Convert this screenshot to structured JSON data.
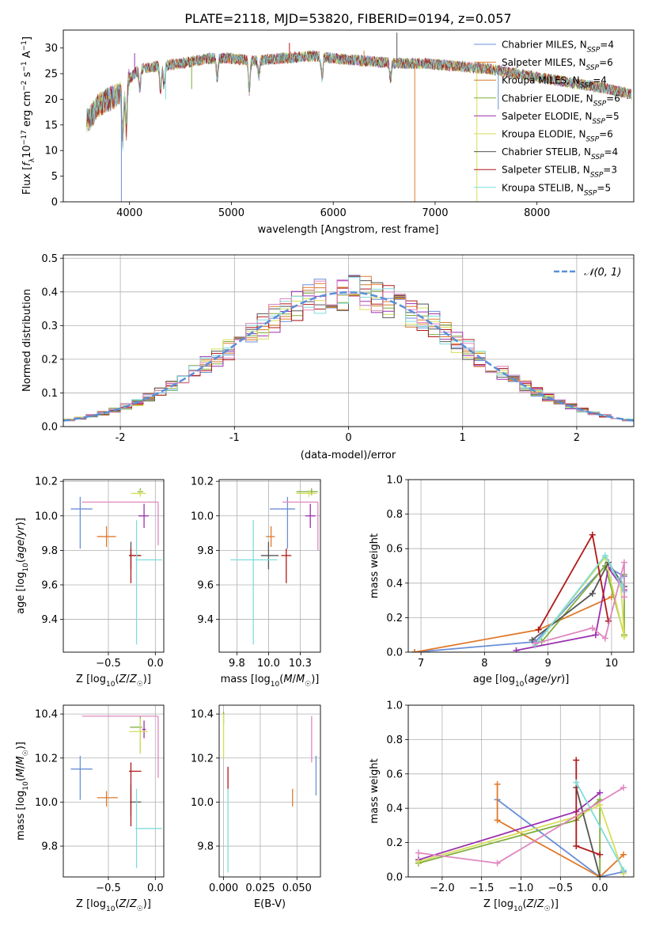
{
  "title": "PLATE=2118, MJD=53820, FIBERID=0194, z=0.057",
  "colors": {
    "Chabrier MILES": "#6a8fd8",
    "Salpeter MILES": "#e07a2c",
    "Kroupa MILES": "#cf7a2a",
    "Chabrier ELODIE": "#7fae3c",
    "Salpeter ELODIE": "#9b30b0",
    "Kroupa ELODIE": "#d6de5a",
    "Chabrier STELIB": "#555555",
    "Salpeter STELIB": "#b01818",
    "Kroupa STELIB": "#7fdcdc",
    "pink": "#e087c0",
    "normal": "#5a8fd8"
  },
  "chart_data": [
    {
      "type": "line",
      "title": "PLATE=2118, MJD=53820, FIBERID=0194, z=0.057",
      "xlabel": "wavelength [Angstrom, rest frame]",
      "ylabel": "Flux [f_λ 10^-17 erg cm^-2 s^-1 A^-1]",
      "xlim": [
        3350,
        8950
      ],
      "ylim": [
        0,
        33.5
      ],
      "xticks": [
        4000,
        5000,
        6000,
        7000,
        8000
      ],
      "yticks": [
        0,
        5,
        10,
        15,
        20,
        25,
        30
      ],
      "grid": false,
      "legend_position": "top-right",
      "legend": [
        {
          "label": "Chabrier MILES, N",
          "sub": "SSP",
          "suffix": "=4",
          "color": "#6a8fd8"
        },
        {
          "label": "Salpeter MILES, N",
          "sub": "SSP",
          "suffix": "=6",
          "color": "#e07a2c"
        },
        {
          "label": "Kroupa MILES, N",
          "sub": "SSP",
          "suffix": "=4",
          "color": "#cf7a2a"
        },
        {
          "label": "Chabrier ELODIE, N",
          "sub": "SSP",
          "suffix": "=6",
          "color": "#7fae3c"
        },
        {
          "label": "Salpeter ELODIE, N",
          "sub": "SSP",
          "suffix": "=5",
          "color": "#9b30b0"
        },
        {
          "label": "Kroupa ELODIE, N",
          "sub": "SSP",
          "suffix": "=6",
          "color": "#d6de5a"
        },
        {
          "label": "Chabrier STELIB, N",
          "sub": "SSP",
          "suffix": "=4",
          "color": "#555555"
        },
        {
          "label": "Salpeter STELIB, N",
          "sub": "SSP",
          "suffix": "=3",
          "color": "#b01818"
        },
        {
          "label": "Kroupa STELIB, N",
          "sub": "SSP",
          "suffix": "=5",
          "color": "#7fdcdc"
        }
      ],
      "continuum": [
        [
          3600,
          16
        ],
        [
          3700,
          19
        ],
        [
          3800,
          20
        ],
        [
          3900,
          21
        ],
        [
          4000,
          24
        ],
        [
          4100,
          26
        ],
        [
          4300,
          26.5
        ],
        [
          4500,
          27
        ],
        [
          4800,
          28
        ],
        [
          5000,
          28
        ],
        [
          5200,
          27.5
        ],
        [
          5500,
          28
        ],
        [
          5800,
          28.5
        ],
        [
          6000,
          28
        ],
        [
          6300,
          27.5
        ],
        [
          6600,
          27
        ],
        [
          6900,
          27
        ],
        [
          7200,
          26.5
        ],
        [
          7500,
          26
        ],
        [
          7800,
          25
        ],
        [
          8100,
          24
        ],
        [
          8400,
          23
        ],
        [
          8700,
          22
        ],
        [
          8930,
          21
        ]
      ],
      "absorption": [
        [
          3934,
          10
        ],
        [
          3968,
          9
        ],
        [
          4101,
          4
        ],
        [
          4305,
          5
        ],
        [
          4340,
          4
        ],
        [
          4861,
          4
        ],
        [
          5175,
          6
        ],
        [
          5270,
          3
        ],
        [
          5890,
          4
        ],
        [
          6563,
          3
        ]
      ],
      "spikes": [
        [
          3920,
          0
        ],
        [
          4050,
          29
        ],
        [
          4355,
          20
        ],
        [
          4610,
          22
        ],
        [
          5570,
          31
        ],
        [
          6302,
          29.5
        ],
        [
          6625,
          33
        ],
        [
          6800,
          0
        ],
        [
          7410,
          0
        ],
        [
          7620,
          18
        ]
      ]
    },
    {
      "type": "step",
      "xlabel": "(data-model)/error",
      "ylabel": "Normed distribution",
      "xlim": [
        -2.5,
        2.5
      ],
      "ylim": [
        0,
        0.51
      ],
      "xticks": [
        -2,
        -1,
        0,
        1,
        2
      ],
      "yticks": [
        0.0,
        0.1,
        0.2,
        0.3,
        0.4,
        0.5
      ],
      "grid": true,
      "legend_position": "top-right",
      "legend": [
        {
          "label": "𝒩(0, 1)",
          "color": "#5a8fd8",
          "style": "dashed"
        }
      ],
      "normal": {
        "mean": 0,
        "sd": 1
      }
    },
    {
      "type": "errorbar",
      "xlabel": "Z [log10(Z/Z☉)]",
      "ylabel": "age [log10(age/yr)]",
      "xlim": [
        -0.98,
        0.09
      ],
      "ylim": [
        9.21,
        10.21
      ],
      "xticks": [
        -0.5,
        0.0
      ],
      "yticks": [
        9.4,
        9.6,
        9.8,
        10.0,
        10.2
      ],
      "grid": true,
      "points": [
        {
          "x": -0.8,
          "y": 10.04,
          "xerr": [
            0.1,
            0.13
          ],
          "yerr": [
            0.23,
            0.07
          ],
          "color": "#6a8fd8"
        },
        {
          "x": -0.52,
          "y": 9.88,
          "xerr": [
            0.1,
            0.1
          ],
          "yerr": [
            0.06,
            0.06
          ],
          "color": "#e07a2c"
        },
        {
          "x": -0.16,
          "y": 10.14,
          "xerr": [
            0.03,
            0.03
          ],
          "yerr": [
            0.02,
            0.02
          ],
          "color": "#7fae3c"
        },
        {
          "x": -0.12,
          "y": 10.0,
          "xerr": [
            0.06,
            0.05
          ],
          "yerr": [
            0.07,
            0.07
          ],
          "color": "#9b30b0"
        },
        {
          "x": -0.16,
          "y": 10.13,
          "xerr": [
            0.1,
            0.06
          ],
          "yerr": [
            0.02,
            0.02
          ],
          "color": "#d6de5a"
        },
        {
          "x": -0.26,
          "y": 9.77,
          "xerr": [
            0.02,
            0.1
          ],
          "yerr": [
            0.08,
            0.08
          ],
          "color": "#555555"
        },
        {
          "x": -0.26,
          "y": 9.77,
          "xerr": [
            0.02,
            0.11
          ],
          "yerr": [
            0.16,
            0.04
          ],
          "color": "#b01818"
        },
        {
          "x": -0.2,
          "y": 9.745,
          "xerr": [
            0.01,
            0.27
          ],
          "yerr": [
            0.49,
            0.23
          ],
          "color": "#7fdcdc"
        },
        {
          "x": 0.03,
          "y": 10.08,
          "xerr": [
            0.81,
            0.0
          ],
          "yerr": [
            0.25,
            0.0
          ],
          "color": "#e087c0"
        }
      ]
    },
    {
      "type": "errorbar",
      "xlabel": "mass [log10(M/M☉)]",
      "ylabel": "",
      "xlim": [
        9.61,
        10.41
      ],
      "ylim": [
        9.21,
        10.21
      ],
      "xticks": [
        9.75,
        10.0,
        10.25
      ],
      "yticks": [
        9.4,
        9.6,
        9.8,
        10.0,
        10.2
      ],
      "grid": true,
      "points": [
        {
          "x": 10.15,
          "y": 10.04,
          "xerr": [
            0.14,
            0.06
          ],
          "yerr": [
            0.23,
            0.07
          ],
          "color": "#6a8fd8"
        },
        {
          "x": 10.02,
          "y": 9.88,
          "xerr": [
            0.04,
            0.03
          ],
          "yerr": [
            0.06,
            0.06
          ],
          "color": "#e07a2c"
        },
        {
          "x": 10.34,
          "y": 10.14,
          "xerr": [
            0.12,
            0.05
          ],
          "yerr": [
            0.02,
            0.02
          ],
          "color": "#7fae3c"
        },
        {
          "x": 10.33,
          "y": 10.0,
          "xerr": [
            0.04,
            0.04
          ],
          "yerr": [
            0.07,
            0.07
          ],
          "color": "#9b30b0"
        },
        {
          "x": 10.32,
          "y": 10.13,
          "xerr": [
            0.1,
            0.06
          ],
          "yerr": [
            0.02,
            0.02
          ],
          "color": "#d6de5a"
        },
        {
          "x": 10.0,
          "y": 9.77,
          "xerr": [
            0.06,
            0.08
          ],
          "yerr": [
            0.08,
            0.08
          ],
          "color": "#555555"
        },
        {
          "x": 10.14,
          "y": 9.77,
          "xerr": [
            0.04,
            0.04
          ],
          "yerr": [
            0.16,
            0.04
          ],
          "color": "#b01818"
        },
        {
          "x": 9.88,
          "y": 9.745,
          "xerr": [
            0.18,
            0.19
          ],
          "yerr": [
            0.49,
            0.23
          ],
          "color": "#7fdcdc"
        },
        {
          "x": 10.39,
          "y": 10.08,
          "xerr": [
            0.28,
            0.0
          ],
          "yerr": [
            0.28,
            0.0
          ],
          "color": "#e087c0"
        }
      ]
    },
    {
      "type": "line",
      "xlabel": "age [log10(age/yr)]",
      "ylabel": "mass weight",
      "xlim": [
        6.8,
        10.35
      ],
      "ylim": [
        0,
        1.0
      ],
      "xticks": [
        7,
        8,
        9,
        10
      ],
      "yticks": [
        0.0,
        0.2,
        0.4,
        0.6,
        0.8,
        1.0
      ],
      "grid": true,
      "series": [
        {
          "color": "#6a8fd8",
          "x": [
            6.9,
            8.8,
            9.9,
            10.2
          ],
          "y": [
            0.0,
            0.06,
            0.5,
            0.44
          ]
        },
        {
          "color": "#e07a2c",
          "x": [
            6.9,
            8.85,
            10.0
          ],
          "y": [
            0.0,
            0.13,
            0.32
          ]
        },
        {
          "color": "#7fae3c",
          "x": [
            8.9,
            9.9,
            10.2,
            10.2
          ],
          "y": [
            0.06,
            0.5,
            0.1,
            0.45
          ]
        },
        {
          "color": "#9b30b0",
          "x": [
            8.5,
            9.75,
            9.95,
            10.2
          ],
          "y": [
            0.01,
            0.1,
            0.49,
            0.36
          ]
        },
        {
          "color": "#d6de5a",
          "x": [
            8.8,
            9.9,
            10.2,
            10.15
          ],
          "y": [
            0.04,
            0.55,
            0.09,
            0.38
          ]
        },
        {
          "color": "#555555",
          "x": [
            8.75,
            9.7,
            9.95,
            10.2
          ],
          "y": [
            0.07,
            0.34,
            0.52,
            0.38
          ]
        },
        {
          "color": "#b01818",
          "x": [
            8.85,
            9.7,
            9.95
          ],
          "y": [
            0.13,
            0.68,
            0.18
          ]
        },
        {
          "color": "#7fdcdc",
          "x": [
            8.8,
            9.9,
            10.2,
            10.15
          ],
          "y": [
            0.04,
            0.56,
            0.35,
            0.43
          ]
        },
        {
          "color": "#e087c0",
          "x": [
            8.8,
            9.7,
            9.9,
            10.2,
            10.2
          ],
          "y": [
            0.05,
            0.14,
            0.08,
            0.52,
            0.32
          ]
        }
      ]
    },
    {
      "type": "errorbar",
      "xlabel": "Z [log10(Z/Z☉)]",
      "ylabel": "mass [log10(M/M☉)]",
      "xlim": [
        -0.98,
        0.09
      ],
      "ylim": [
        9.66,
        10.44
      ],
      "xticks": [
        -0.5,
        0.0
      ],
      "yticks": [
        9.8,
        10.0,
        10.2,
        10.4
      ],
      "grid": true,
      "points": [
        {
          "x": -0.8,
          "y": 10.15,
          "xerr": [
            0.1,
            0.13
          ],
          "yerr": [
            0.14,
            0.06
          ],
          "color": "#6a8fd8"
        },
        {
          "x": -0.52,
          "y": 10.02,
          "xerr": [
            0.1,
            0.12
          ],
          "yerr": [
            0.04,
            0.03
          ],
          "color": "#e07a2c"
        },
        {
          "x": -0.16,
          "y": 10.34,
          "xerr": [
            0.11,
            0.02
          ],
          "yerr": [
            0.12,
            0.05
          ],
          "color": "#7fae3c"
        },
        {
          "x": -0.12,
          "y": 10.33,
          "xerr": [
            0.02,
            0.02
          ],
          "yerr": [
            0.04,
            0.04
          ],
          "color": "#9b30b0"
        },
        {
          "x": -0.16,
          "y": 10.32,
          "xerr": [
            0.12,
            0.08
          ],
          "yerr": [
            0.1,
            0.06
          ],
          "color": "#d6de5a"
        },
        {
          "x": -0.26,
          "y": 10.0,
          "xerr": [
            0.01,
            0.11
          ],
          "yerr": [
            0.06,
            0.08
          ],
          "color": "#555555"
        },
        {
          "x": -0.26,
          "y": 10.14,
          "xerr": [
            0.02,
            0.11
          ],
          "yerr": [
            0.25,
            0.04
          ],
          "color": "#b01818"
        },
        {
          "x": -0.2,
          "y": 9.88,
          "xerr": [
            0.01,
            0.27
          ],
          "yerr": [
            0.18,
            0.18
          ],
          "color": "#7fdcdc"
        },
        {
          "x": 0.03,
          "y": 10.39,
          "xerr": [
            0.81,
            0.0
          ],
          "yerr": [
            0.28,
            0.0
          ],
          "color": "#e087c0"
        }
      ]
    },
    {
      "type": "errorbar",
      "xlabel": "E(B-V)",
      "ylabel": "",
      "xlim": [
        -0.003,
        0.066
      ],
      "ylim": [
        9.66,
        10.44
      ],
      "xticks": [
        0.0,
        0.025,
        0.05
      ],
      "yticks": [
        9.8,
        10.0,
        10.2,
        10.4
      ],
      "grid": true,
      "points": [
        {
          "x": 0.0,
          "y": 10.38,
          "xerr": [
            0,
            0
          ],
          "yerr": [
            0.03,
            0.03
          ],
          "color": "#7fae3c"
        },
        {
          "x": 0.0,
          "y": 10.3,
          "xerr": [
            0,
            0
          ],
          "yerr": [
            0.1,
            0.1
          ],
          "color": "#d6de5a"
        },
        {
          "x": 0.003,
          "y": 10.11,
          "xerr": [
            0,
            0
          ],
          "yerr": [
            0.05,
            0.05
          ],
          "color": "#b01818"
        },
        {
          "x": 0.003,
          "y": 9.88,
          "xerr": [
            0,
            0
          ],
          "yerr": [
            0.2,
            0.18
          ],
          "color": "#7fdcdc"
        },
        {
          "x": 0.047,
          "y": 10.02,
          "xerr": [
            0,
            0
          ],
          "yerr": [
            0.04,
            0.04
          ],
          "color": "#e07a2c"
        },
        {
          "x": 0.06,
          "y": 10.3,
          "xerr": [
            0,
            0
          ],
          "yerr": [
            0.12,
            0.09
          ],
          "color": "#e087c0"
        },
        {
          "x": 0.063,
          "y": 10.12,
          "xerr": [
            0,
            0
          ],
          "yerr": [
            0.09,
            0.09
          ],
          "color": "#6a8fd8"
        }
      ]
    },
    {
      "type": "line",
      "xlabel": "Z [log10(Z/Z☉)]",
      "ylabel": "mass weight",
      "xlim": [
        -2.43,
        0.43
      ],
      "ylim": [
        0,
        1.0
      ],
      "xticks": [
        -2.0,
        -1.5,
        -1.0,
        -0.5,
        0.0
      ],
      "yticks": [
        0.0,
        0.2,
        0.4,
        0.6,
        0.8,
        1.0
      ],
      "grid": true,
      "series": [
        {
          "color": "#6a8fd8",
          "x": [
            -1.3,
            0.0,
            0.3
          ],
          "y": [
            0.45,
            0.0,
            0.03
          ]
        },
        {
          "color": "#e07a2c",
          "x": [
            -1.3,
            -1.3,
            0.0,
            0.3
          ],
          "y": [
            0.54,
            0.33,
            0.0,
            0.13
          ]
        },
        {
          "color": "#7fae3c",
          "x": [
            -2.3,
            -0.3,
            0.0,
            0.0
          ],
          "y": [
            0.08,
            0.33,
            0.45,
            0.0
          ]
        },
        {
          "color": "#9b30b0",
          "x": [
            -2.3,
            -0.3,
            0.0
          ],
          "y": [
            0.1,
            0.38,
            0.49
          ]
        },
        {
          "color": "#d6de5a",
          "x": [
            -2.3,
            -0.3,
            0.0,
            0.3
          ],
          "y": [
            0.09,
            0.35,
            0.42,
            0.02
          ]
        },
        {
          "color": "#555555",
          "x": [
            -0.3,
            0.0
          ],
          "y": [
            0.52,
            0.0
          ]
        },
        {
          "color": "#b01818",
          "x": [
            -0.3,
            -0.3,
            0.0
          ],
          "y": [
            0.68,
            0.18,
            0.13
          ]
        },
        {
          "color": "#7fdcdc",
          "x": [
            -0.3,
            0.3
          ],
          "y": [
            0.55,
            0.04
          ]
        },
        {
          "color": "#e087c0",
          "x": [
            -2.3,
            -1.3,
            0.3
          ],
          "y": [
            0.14,
            0.08,
            0.52
          ]
        }
      ]
    }
  ]
}
